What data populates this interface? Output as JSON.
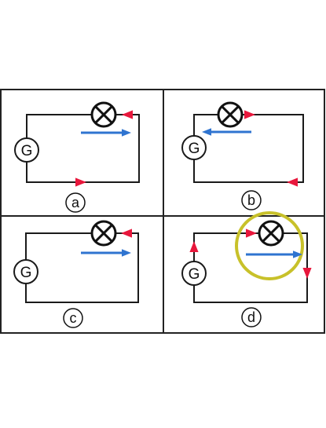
{
  "colors": {
    "background": "#ffffff",
    "frame": "#222222",
    "wire": "#1a1a1a",
    "current_arrow": "#e8173c",
    "field_arrow": "#2f74d0",
    "highlight_ring": "#c8c12a"
  },
  "panels": [
    {
      "id": "a",
      "label": "a",
      "galvanometer_label": "G",
      "bulb_icon": "bulb-cross-icon",
      "current_arrows": [
        {
          "segment": "top-right",
          "direction": "left"
        },
        {
          "segment": "bottom",
          "direction": "right"
        }
      ],
      "field_arrow": {
        "direction": "right"
      },
      "highlighted": false
    },
    {
      "id": "b",
      "label": "b",
      "galvanometer_label": "G",
      "bulb_icon": "bulb-cross-icon",
      "current_arrows": [
        {
          "segment": "top-right",
          "direction": "right"
        },
        {
          "segment": "bottom",
          "direction": "left"
        }
      ],
      "field_arrow": {
        "direction": "left"
      },
      "highlighted": false
    },
    {
      "id": "c",
      "label": "c",
      "galvanometer_label": "G",
      "bulb_icon": "bulb-cross-icon",
      "current_arrows": [
        {
          "segment": "top-right",
          "direction": "left"
        }
      ],
      "field_arrow": {
        "direction": "right"
      },
      "highlighted": false
    },
    {
      "id": "d",
      "label": "d",
      "galvanometer_label": "G",
      "bulb_icon": "bulb-cross-icon",
      "current_arrows": [
        {
          "segment": "left",
          "direction": "up"
        },
        {
          "segment": "top-left",
          "direction": "right"
        },
        {
          "segment": "right",
          "direction": "down"
        }
      ],
      "field_arrow": {
        "direction": "right"
      },
      "highlighted": true
    }
  ]
}
